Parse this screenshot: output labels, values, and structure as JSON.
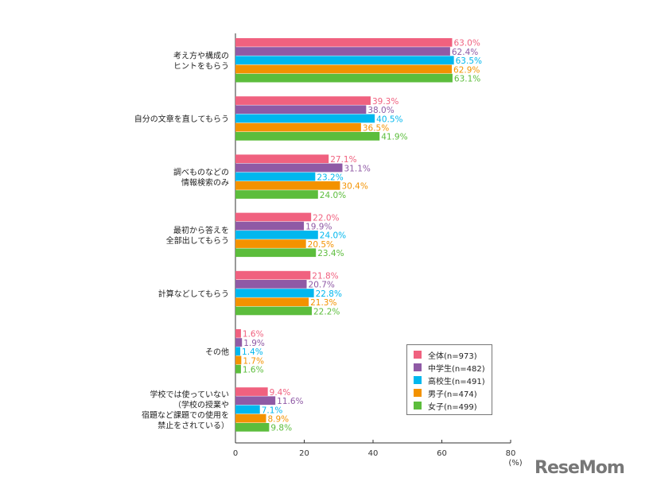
{
  "chart_data": {
    "type": "bar",
    "orientation": "horizontal",
    "categories": [
      "考え方や構成の\nヒントをもらう",
      "自分の文章を直してもらう",
      "調べものなどの\n情報検索のみ",
      "最初から答えを\n全部出してもらう",
      "計算などしてもらう",
      "その他",
      "学校では使っていない\n（学校の授業や\n宿題など課題での使用を\n禁止をされている）"
    ],
    "series": [
      {
        "name": "全体(n=973)",
        "color": "#f0617f",
        "values": [
          63.0,
          39.3,
          27.1,
          22.0,
          21.8,
          1.6,
          9.4
        ]
      },
      {
        "name": "中学生(n=482)",
        "color": "#8f5aa5",
        "values": [
          62.4,
          38.0,
          31.1,
          19.9,
          20.7,
          1.9,
          11.6
        ]
      },
      {
        "name": "高校生(n=491)",
        "color": "#00b7ee",
        "values": [
          63.5,
          40.5,
          23.2,
          24.0,
          22.8,
          1.4,
          7.1
        ]
      },
      {
        "name": "男子(n=474)",
        "color": "#f39200",
        "values": [
          62.9,
          36.5,
          30.4,
          20.5,
          21.3,
          1.7,
          8.9
        ]
      },
      {
        "name": "女子(n=499)",
        "color": "#5cbd3c",
        "values": [
          63.1,
          41.9,
          24.0,
          23.4,
          22.2,
          1.6,
          9.8
        ]
      }
    ],
    "xticks": [
      0,
      20,
      40,
      60,
      80
    ],
    "xlim": [
      0,
      80
    ],
    "unit": "(%)",
    "legend": "bottom-right",
    "grid": false
  },
  "watermark": "ReseMom"
}
